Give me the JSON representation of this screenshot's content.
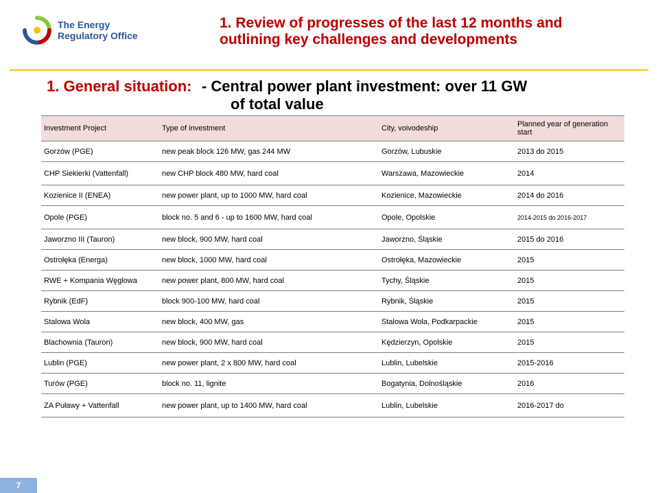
{
  "logo": {
    "line1": "The Energy",
    "line2": "Regulatory Office"
  },
  "title": "1. Review of progresses of the last 12 months and outlining key challenges and developments",
  "subtitle": {
    "left": "1. General situation:",
    "right_line1": "- Central  power plant investment:  over 11 GW",
    "right_line2": "of total value"
  },
  "table": {
    "headers": {
      "project": "Investment Project",
      "type": "Type of investment",
      "city": "City, voivodeship",
      "planned": "Planned year of generation start"
    },
    "rows": [
      {
        "project": "Gorzów (PGE)",
        "type": "new peak block 126 MW, gas  244 MW",
        "city": "Gorzów, Lubuskie",
        "planned": "2013 do 2015"
      },
      {
        "project": "CHP Siekierki (Vattenfall)",
        "type": "new  CHP block 480 MW, hard coal",
        "city": "Warszawa, Mazowieckie",
        "planned": "2014"
      },
      {
        "project": "Kozienice II (ENEA)",
        "type": "new power plant, up to 1000 MW, hard coal",
        "city": "Kozienice, Mazowieckie",
        "planned": "2014 do 2016"
      },
      {
        "project": "Opole (PGE)",
        "type": "block no. 5 and 6 - up to 1600 MW, hard coal",
        "city": "Opole, Opolskie",
        "planned": "2014-2015 do 2016-2017"
      },
      {
        "project": "Jaworzno III (Tauron)",
        "type": "new block, 900 MW, hard coal",
        "city": "Jaworzno, Śląskie",
        "planned": "2015 do 2016"
      },
      {
        "project": "Ostrołęka (Energa)",
        "type": "new block, 1000 MW, hard coal",
        "city": "Ostrołęka, Mazowieckie",
        "planned": "2015"
      },
      {
        "project": "RWE + Kompania Węglowa",
        "type": "new power plant, 800 MW, hard coal",
        "city": "Tychy, Śląskie",
        "planned": "2015"
      },
      {
        "project": "Rybnik (EdF)",
        "type": "block 900-100 MW, hard coal",
        "city": "Rybnik, Śląskie",
        "planned": "2015"
      },
      {
        "project": "Stalowa Wola",
        "type": "new block, 400 MW, gas",
        "city": "Stalowa Wola, Podkarpackie",
        "planned": "2015"
      },
      {
        "project": "Blachownia (Tauron)",
        "type": "new block, 900 MW, hard coal",
        "city": "Kędzierzyn, Opolskie",
        "planned": "2015"
      },
      {
        "project": "Lublin (PGE)",
        "type": "new power plant, 2 x 800 MW, hard coal",
        "city": "Lublin, Lubelskie",
        "planned": "2015-2016"
      },
      {
        "project": "Turów (PGE)",
        "type": "block no. 11, lignite",
        "city": "Bogatynia, Dolnośląskie",
        "planned": "2016"
      },
      {
        "project": "ZA Puławy + Vattenfall",
        "type": "new power plant, up to 1400 MW, hard coal",
        "city": "Lublin, Lubelskie",
        "planned": "2016-2017 do"
      }
    ]
  },
  "page_number": "7",
  "colors": {
    "title": "#c00000",
    "accent": "#ffc000",
    "header_bg": "#f2dcdb",
    "page_badge": "#8db3e2",
    "logo_text": "#2b5797"
  }
}
